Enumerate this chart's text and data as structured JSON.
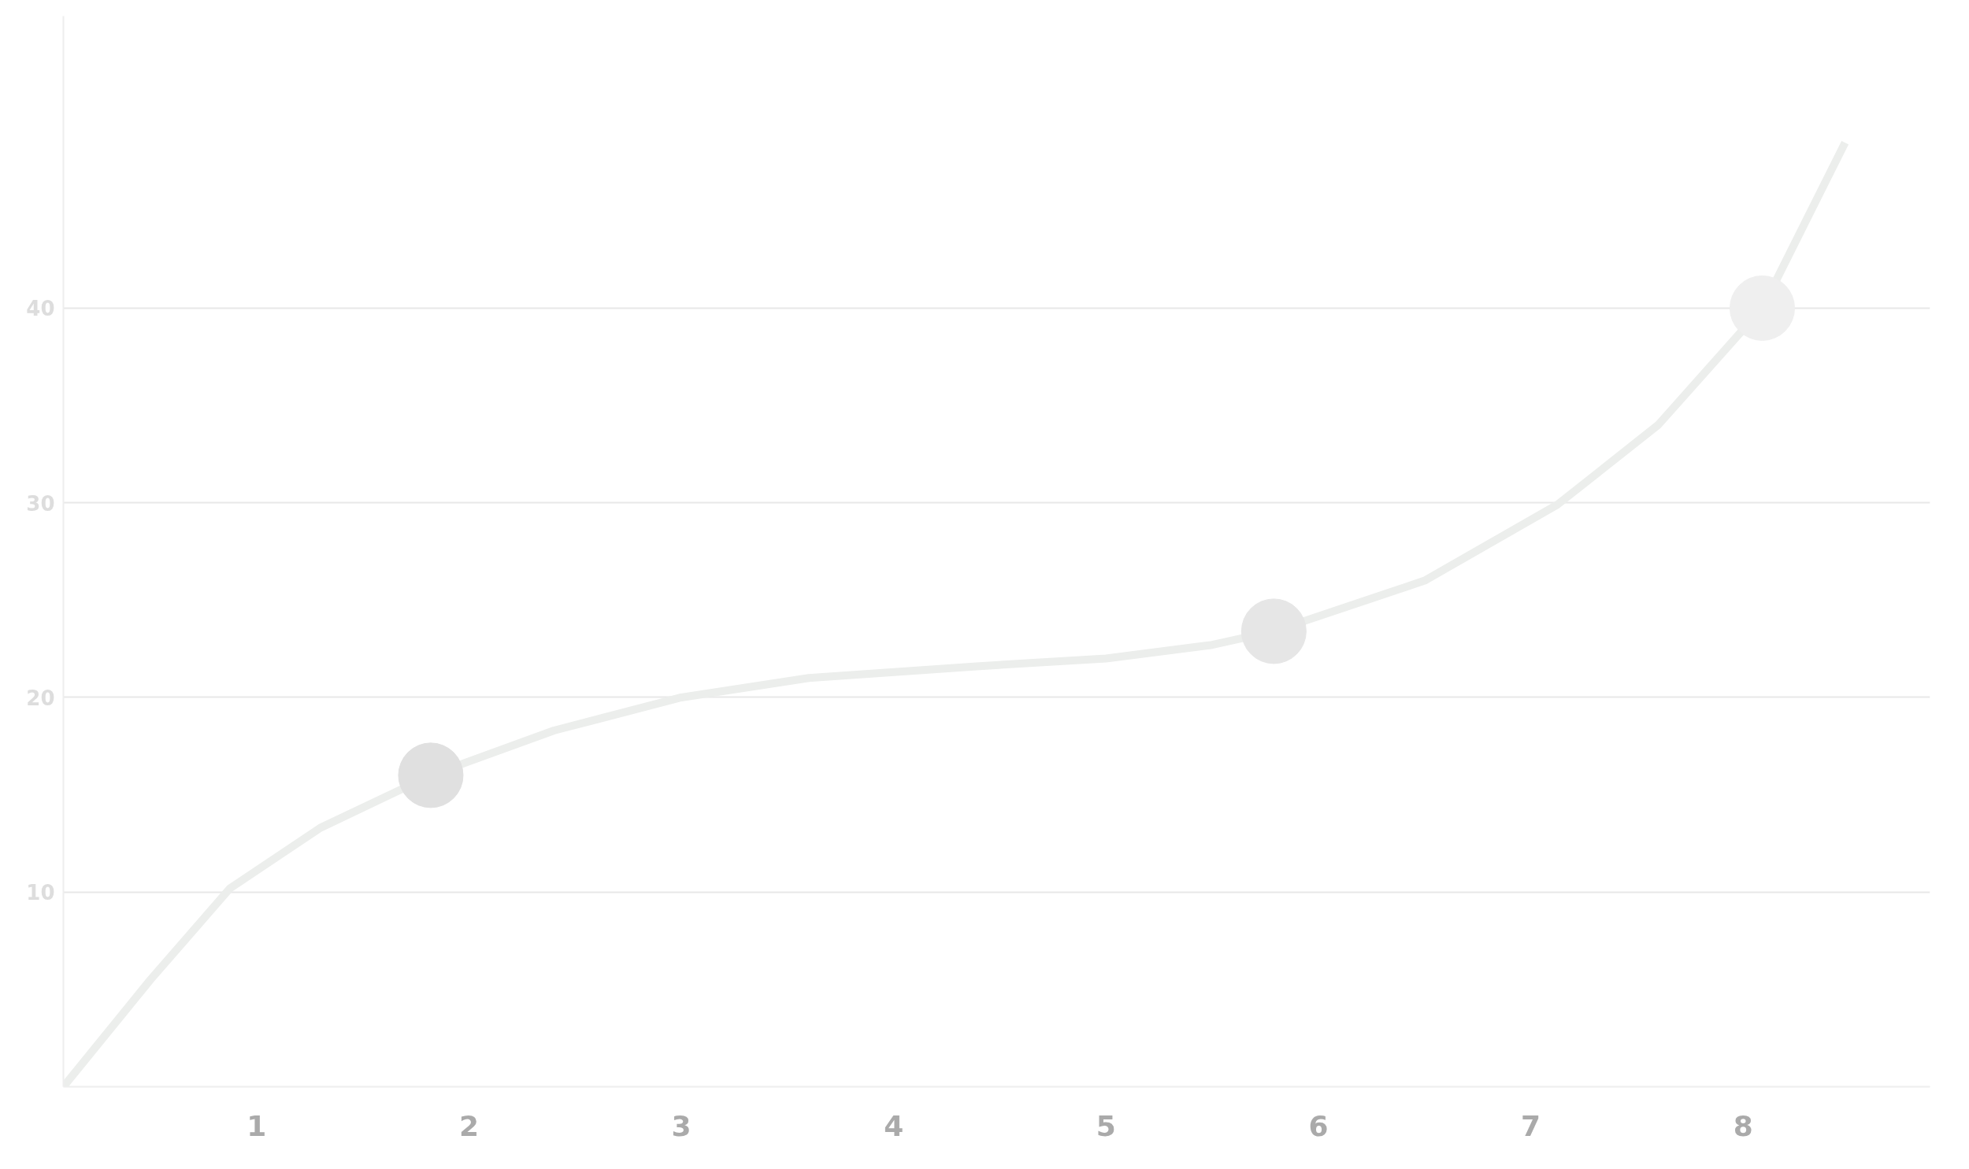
{
  "chart_data": {
    "type": "line",
    "series": [
      {
        "color": "#eceeec",
        "marker": "none",
        "x": [
          0.09,
          0.5,
          0.875,
          1.3,
          1.82,
          2.4,
          3.0,
          3.6,
          4.39,
          5.0,
          5.5,
          5.79,
          6.5,
          7.125,
          7.6,
          8.09,
          8.48
        ],
        "values": [
          0,
          5.5,
          10.2,
          13.3,
          16.0,
          18.3,
          20.0,
          21.0,
          21.6,
          22.0,
          22.7,
          23.4,
          26.0,
          29.9,
          34.0,
          40.0,
          48.5
        ]
      },
      {
        "type": "scatter",
        "marker": "circle",
        "colors": [
          "#e0e0e0",
          "#e6e6e6",
          "#efefef"
        ],
        "x": [
          1.82,
          5.79,
          8.09
        ],
        "values": [
          16.0,
          23.4,
          40.0
        ]
      }
    ],
    "xlim": [
      0.09,
      8.88
    ],
    "ylim": [
      0,
      55
    ],
    "xticks": [
      1,
      2,
      3,
      4,
      5,
      6,
      7,
      8
    ],
    "yticks": [
      10,
      20,
      30,
      40
    ],
    "grid": "y"
  }
}
